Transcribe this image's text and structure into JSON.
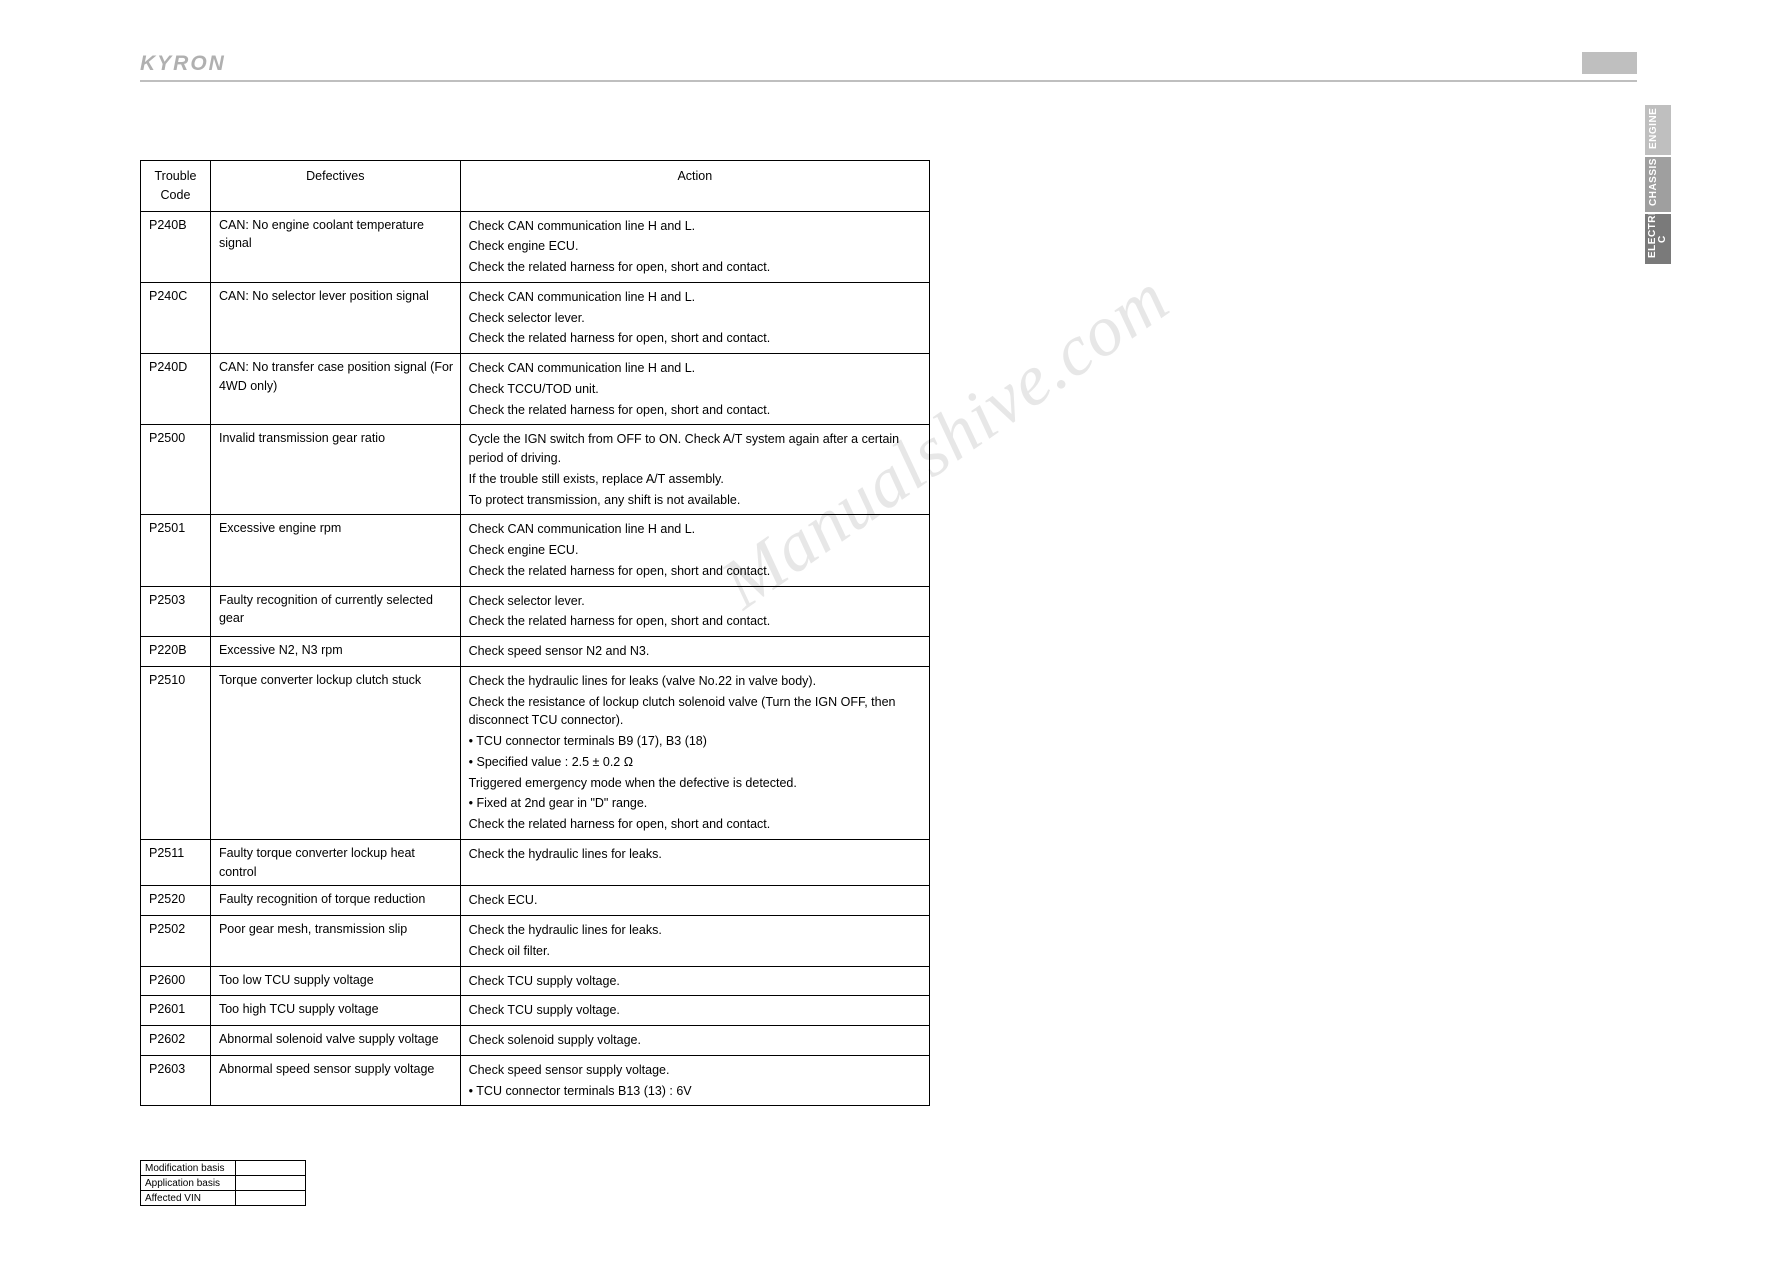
{
  "header": {
    "logo": "KYRON"
  },
  "side_tabs": {
    "engine": "ENGINE",
    "chassis": "CHASSIS",
    "electri": "ELECTRI\nC"
  },
  "watermark": "Manualshive.com",
  "table": {
    "headers": {
      "code": "Trouble\nCode",
      "defectives": "Defectives",
      "action": "Action"
    },
    "rows": [
      {
        "code": "P240B",
        "def": "CAN: No engine coolant temperature signal",
        "act": [
          "Check CAN communication line H and L.",
          "Check engine ECU.",
          "Check the related harness for open, short and contact."
        ]
      },
      {
        "code": "P240C",
        "def": "CAN: No selector lever position signal",
        "act": [
          "Check CAN communication line H and L.",
          "Check selector lever.",
          "Check the related harness for open, short and contact."
        ]
      },
      {
        "code": "P240D",
        "def": "CAN: No transfer case position signal (For 4WD only)",
        "act": [
          "Check CAN communication line H and L.",
          "Check TCCU/TOD unit.",
          "Check the related harness for open, short and contact."
        ]
      },
      {
        "code": "P2500",
        "def": "Invalid transmission gear ratio",
        "act": [
          "Cycle the IGN switch from OFF to ON. Check A/T system again after a certain period of driving.",
          "If the trouble still exists, replace A/T assembly.",
          "To protect transmission, any shift is not available."
        ]
      },
      {
        "code": "P2501",
        "def": "Excessive engine rpm",
        "act": [
          "Check CAN communication line H and L.",
          "Check engine ECU.",
          "Check the related harness for open, short and contact."
        ]
      },
      {
        "code": "P2503",
        "def": "Faulty recognition of currently selected gear",
        "act": [
          "Check selector lever.",
          "Check the related harness for open, short and contact."
        ]
      },
      {
        "code": "P220B",
        "def": "Excessive N2, N3 rpm",
        "act": [
          "Check speed sensor N2 and N3."
        ]
      },
      {
        "code": "P2510",
        "def": "Torque converter lockup clutch stuck",
        "act": [
          "Check the hydraulic lines for leaks (valve No.22 in valve body).",
          "Check the resistance of lockup clutch solenoid valve (Turn the IGN OFF, then disconnect TCU connector).",
          "•  TCU connector terminals B9 (17), B3 (18)",
          "•  Specified value : 2.5 ± 0.2 Ω",
          "Triggered emergency mode when the defective is detected.",
          "•  Fixed at 2nd gear in \"D\" range.",
          "Check the related harness for open, short and contact."
        ]
      },
      {
        "code": "P2511",
        "def": "Faulty torque converter lockup heat control",
        "act": [
          "Check the hydraulic lines for leaks."
        ]
      },
      {
        "code": "P2520",
        "def": "Faulty recognition of torque reduction",
        "act": [
          "Check ECU."
        ]
      },
      {
        "code": "P2502",
        "def": "Poor gear mesh, transmission slip",
        "act": [
          "Check the hydraulic lines for leaks.",
          "Check oil filter."
        ]
      },
      {
        "code": "P2600",
        "def": "Too low TCU supply voltage",
        "act": [
          "Check TCU supply voltage."
        ]
      },
      {
        "code": "P2601",
        "def": "Too high TCU supply voltage",
        "act": [
          "Check TCU supply voltage."
        ]
      },
      {
        "code": "P2602",
        "def": "Abnormal solenoid valve supply voltage",
        "act": [
          "Check solenoid supply voltage."
        ]
      },
      {
        "code": "P2603",
        "def": "Abnormal speed sensor supply voltage",
        "act": [
          "Check speed sensor supply voltage.",
          "•  TCU connector terminals B13 (13) : 6V"
        ]
      }
    ]
  },
  "footer": {
    "mod": "Modification basis",
    "app": "Application basis",
    "vin": "Affected VIN"
  },
  "colors": {
    "border_gray": "#bfbfbf",
    "logo_gray": "#b0b0b0",
    "tab_text": "#ffffff",
    "tab_engine": "#bfbfbf",
    "tab_chassis": "#9f9f9f",
    "tab_electri": "#7a7a7a",
    "text": "#000000",
    "watermark": "rgba(120,120,120,0.18)",
    "background": "#ffffff"
  }
}
